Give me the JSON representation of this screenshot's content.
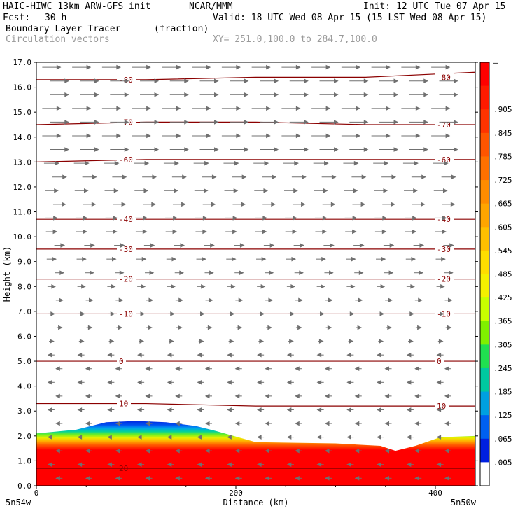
{
  "header": {
    "model": "HAIC-HIWC 13km ARW-GFS init",
    "org": "NCAR/MMM",
    "init": "Init: 12 UTC Tue 07 Apr 15",
    "fcst_label": "Fcst:",
    "fcst_value": "30 h",
    "valid": "Valid: 18 UTC Wed 08 Apr 15 (15 LST Wed 08 Apr 15)",
    "field": "Boundary Layer Tracer",
    "units": "(fraction)",
    "vectors": "Circulation vectors",
    "xsection": "XY= 251.0,100.0 to 284.7,100.0"
  },
  "chart_data": {
    "type": "heatmap",
    "xlabel": "Distance (km)",
    "ylabel": "Height (km)",
    "xlim": [
      0,
      440
    ],
    "ylim": [
      0,
      17
    ],
    "x_ticks": [
      0,
      200,
      400
    ],
    "y_ticks": [
      "0.0",
      "1.0",
      "2.0",
      "3.0",
      "4.0",
      "5.0",
      "6.0",
      "7.0",
      "8.0",
      "9.0",
      "10.0",
      "11.0",
      "12.0",
      "13.0",
      "14.0",
      "15.0",
      "16.0",
      "17.0"
    ],
    "x_endpoints": {
      "left": "5n54w",
      "right": "5n50w"
    },
    "colorbar": {
      "labels": [
        "–",
        ".905",
        ".845",
        ".785",
        ".725",
        ".665",
        ".605",
        ".545",
        ".485",
        ".425",
        ".365",
        ".305",
        ".245",
        ".185",
        ".125",
        ".065",
        ".005"
      ],
      "colors": [
        "#ff0000",
        "#ff1a00",
        "#ff3300",
        "#ff5500",
        "#ff7000",
        "#ff8c00",
        "#ffa500",
        "#ffc000",
        "#ffdd00",
        "#f5f000",
        "#c8ff00",
        "#80f000",
        "#20e050",
        "#00c8a0",
        "#00a0e0",
        "#0060f0",
        "#0020e0",
        "#ffffff"
      ]
    },
    "temperature_contours": [
      {
        "label": "-80",
        "heights": [
          16.3,
          16.3,
          16.4,
          16.4,
          16.6
        ]
      },
      {
        "label": "-70",
        "heights": [
          14.5,
          14.6,
          14.6,
          14.5,
          14.5
        ]
      },
      {
        "label": "-60",
        "heights": [
          13.0,
          13.1,
          13.1,
          13.1,
          13.1
        ]
      },
      {
        "label": "-40",
        "heights": [
          10.7,
          10.7,
          10.7,
          10.7,
          10.7
        ]
      },
      {
        "label": "-30",
        "heights": [
          9.5,
          9.5,
          9.5,
          9.5,
          9.5
        ]
      },
      {
        "label": "-20",
        "heights": [
          8.3,
          8.3,
          8.3,
          8.3,
          8.3
        ]
      },
      {
        "label": "-10",
        "heights": [
          6.9,
          6.9,
          6.9,
          6.9,
          6.9
        ]
      },
      {
        "label": "0",
        "heights": [
          5.0,
          5.0,
          5.0,
          5.0,
          5.0
        ]
      },
      {
        "label": "10",
        "heights": [
          3.3,
          3.3,
          3.2,
          3.2,
          3.2
        ]
      },
      {
        "label": "20",
        "heights": [
          0.7,
          0.7,
          0.7,
          0.7,
          0.7
        ]
      }
    ],
    "boundary_layer_top": {
      "x": [
        0,
        40,
        70,
        100,
        130,
        160,
        180,
        220,
        300,
        345,
        360,
        380,
        405,
        440
      ],
      "heights": [
        2.1,
        2.25,
        2.55,
        2.6,
        2.55,
        2.4,
        2.2,
        1.75,
        1.7,
        1.6,
        1.4,
        1.6,
        1.95,
        2.0
      ]
    },
    "vector_levels": {
      "strong_westerly_above_km": 13.5,
      "weak_westerly_above_km": 5.5,
      "weak_easterly_below_km": 5.5
    }
  }
}
